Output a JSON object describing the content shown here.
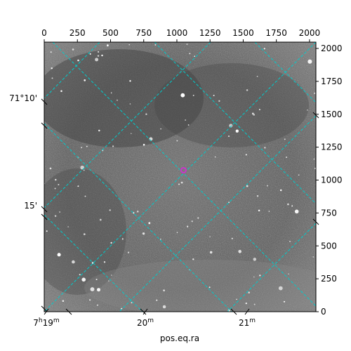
{
  "chart_data": {
    "type": "image",
    "title": "",
    "xlabel": "pos.eq.ra",
    "ylabel": "",
    "pixel_axes": {
      "x_ticks": [
        0,
        250,
        500,
        750,
        1000,
        1250,
        1500,
        1750,
        2000
      ],
      "y_ticks": [
        0,
        250,
        500,
        750,
        1000,
        1250,
        1500,
        1750,
        2000
      ],
      "xlim": [
        0,
        2048
      ],
      "ylim": [
        0,
        2048
      ]
    },
    "world_axes": {
      "ra_labels": [
        {
          "h": "7",
          "m": "19",
          "ra_minutes": 19
        },
        {
          "h": "",
          "m": "20",
          "ra_minutes": 20
        },
        {
          "h": "",
          "m": "21",
          "ra_minutes": 21
        }
      ],
      "dec_labels": [
        {
          "text": "71°10'",
          "dec_arcmin": 10
        },
        {
          "text": "15'",
          "dec_arcmin": 15
        }
      ]
    },
    "grid": true,
    "grid_color": "#00cccc",
    "marker": {
      "x": 1050,
      "y": 1075,
      "color": "#cc33cc"
    }
  }
}
